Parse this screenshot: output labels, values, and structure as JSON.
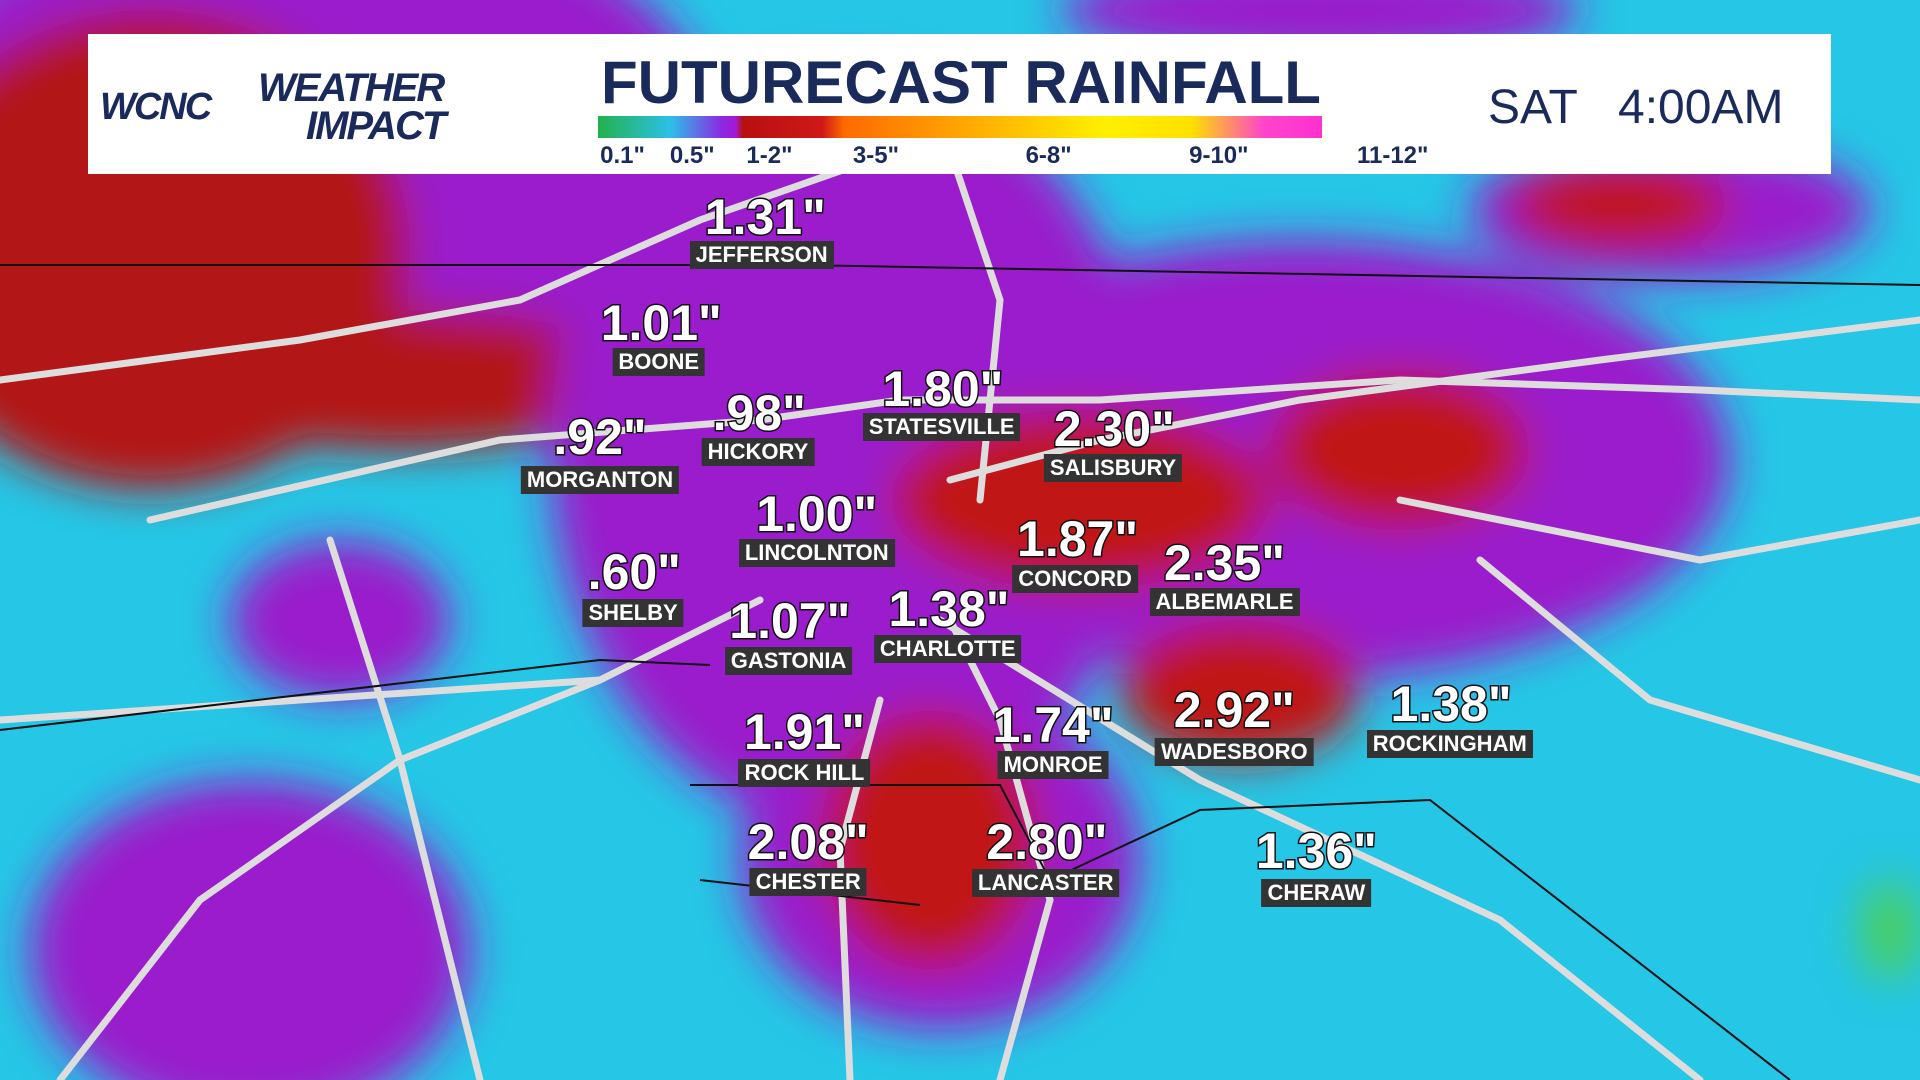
{
  "header": {
    "brand": "WCNC",
    "brand_sub_1": "WEATHER",
    "brand_sub_2": "IMPACT",
    "title": "FUTURECAST RAINFALL",
    "day": "SAT",
    "time": "4:00AM"
  },
  "legend": {
    "labels": [
      "0.1\"",
      "0.5\"",
      "1-2\"",
      "3-5\"",
      "6-8\"",
      "9-10\"",
      "11-12\""
    ]
  },
  "cities": [
    {
      "value": "1.31\"",
      "name": "JEFFERSON"
    },
    {
      "value": "1.01\"",
      "name": "BOONE"
    },
    {
      "value": ".92\"",
      "name": "MORGANTON"
    },
    {
      "value": ".98\"",
      "name": "HICKORY"
    },
    {
      "value": "1.80\"",
      "name": "STATESVILLE"
    },
    {
      "value": "2.30\"",
      "name": "SALISBURY"
    },
    {
      "value": "1.00\"",
      "name": "LINCOLNTON"
    },
    {
      "value": "1.87\"",
      "name": "CONCORD"
    },
    {
      "value": "2.35\"",
      "name": "ALBEMARLE"
    },
    {
      "value": ".60\"",
      "name": "SHELBY"
    },
    {
      "value": "1.07\"",
      "name": "GASTONIA"
    },
    {
      "value": "1.38\"",
      "name": "CHARLOTTE"
    },
    {
      "value": "1.91\"",
      "name": "ROCK HILL"
    },
    {
      "value": "1.74\"",
      "name": "MONROE"
    },
    {
      "value": "2.92\"",
      "name": "WADESBORO"
    },
    {
      "value": "1.38\"",
      "name": "ROCKINGHAM"
    },
    {
      "value": "2.08\"",
      "name": "CHESTER"
    },
    {
      "value": "2.80\"",
      "name": "LANCASTER"
    },
    {
      "value": "1.36\"",
      "name": "CHERAW"
    }
  ]
}
